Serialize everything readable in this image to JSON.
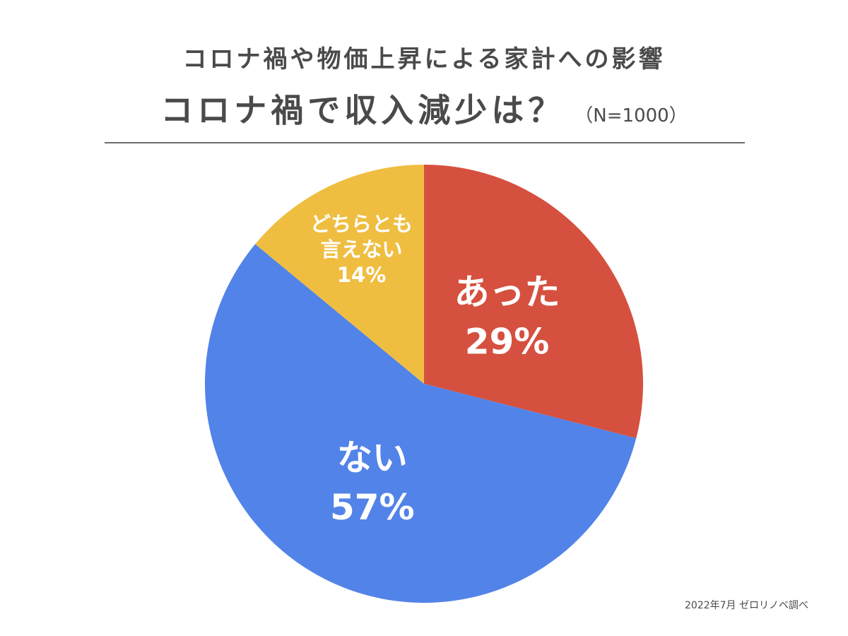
{
  "header": {
    "subtitle": "コロナ禍や物価上昇による家計への影響",
    "title": "コロナ禍で収入減少は？",
    "sample_size": "（N=1000）"
  },
  "credit": "2022年7月 ゼロリノベ調べ",
  "chart_data": {
    "type": "pie",
    "title": "コロナ禍で収入減少は？",
    "start_angle_deg": 0,
    "direction": "clockwise",
    "slices": [
      {
        "label": "あった",
        "value": 29,
        "display": "29%",
        "color": "#d6503f"
      },
      {
        "label": "ない",
        "value": 57,
        "display": "57%",
        "color": "#5283e8"
      },
      {
        "label_lines": [
          "どちらとも",
          "言えない"
        ],
        "value": 14,
        "display": "14%",
        "color": "#efbe41"
      }
    ]
  }
}
